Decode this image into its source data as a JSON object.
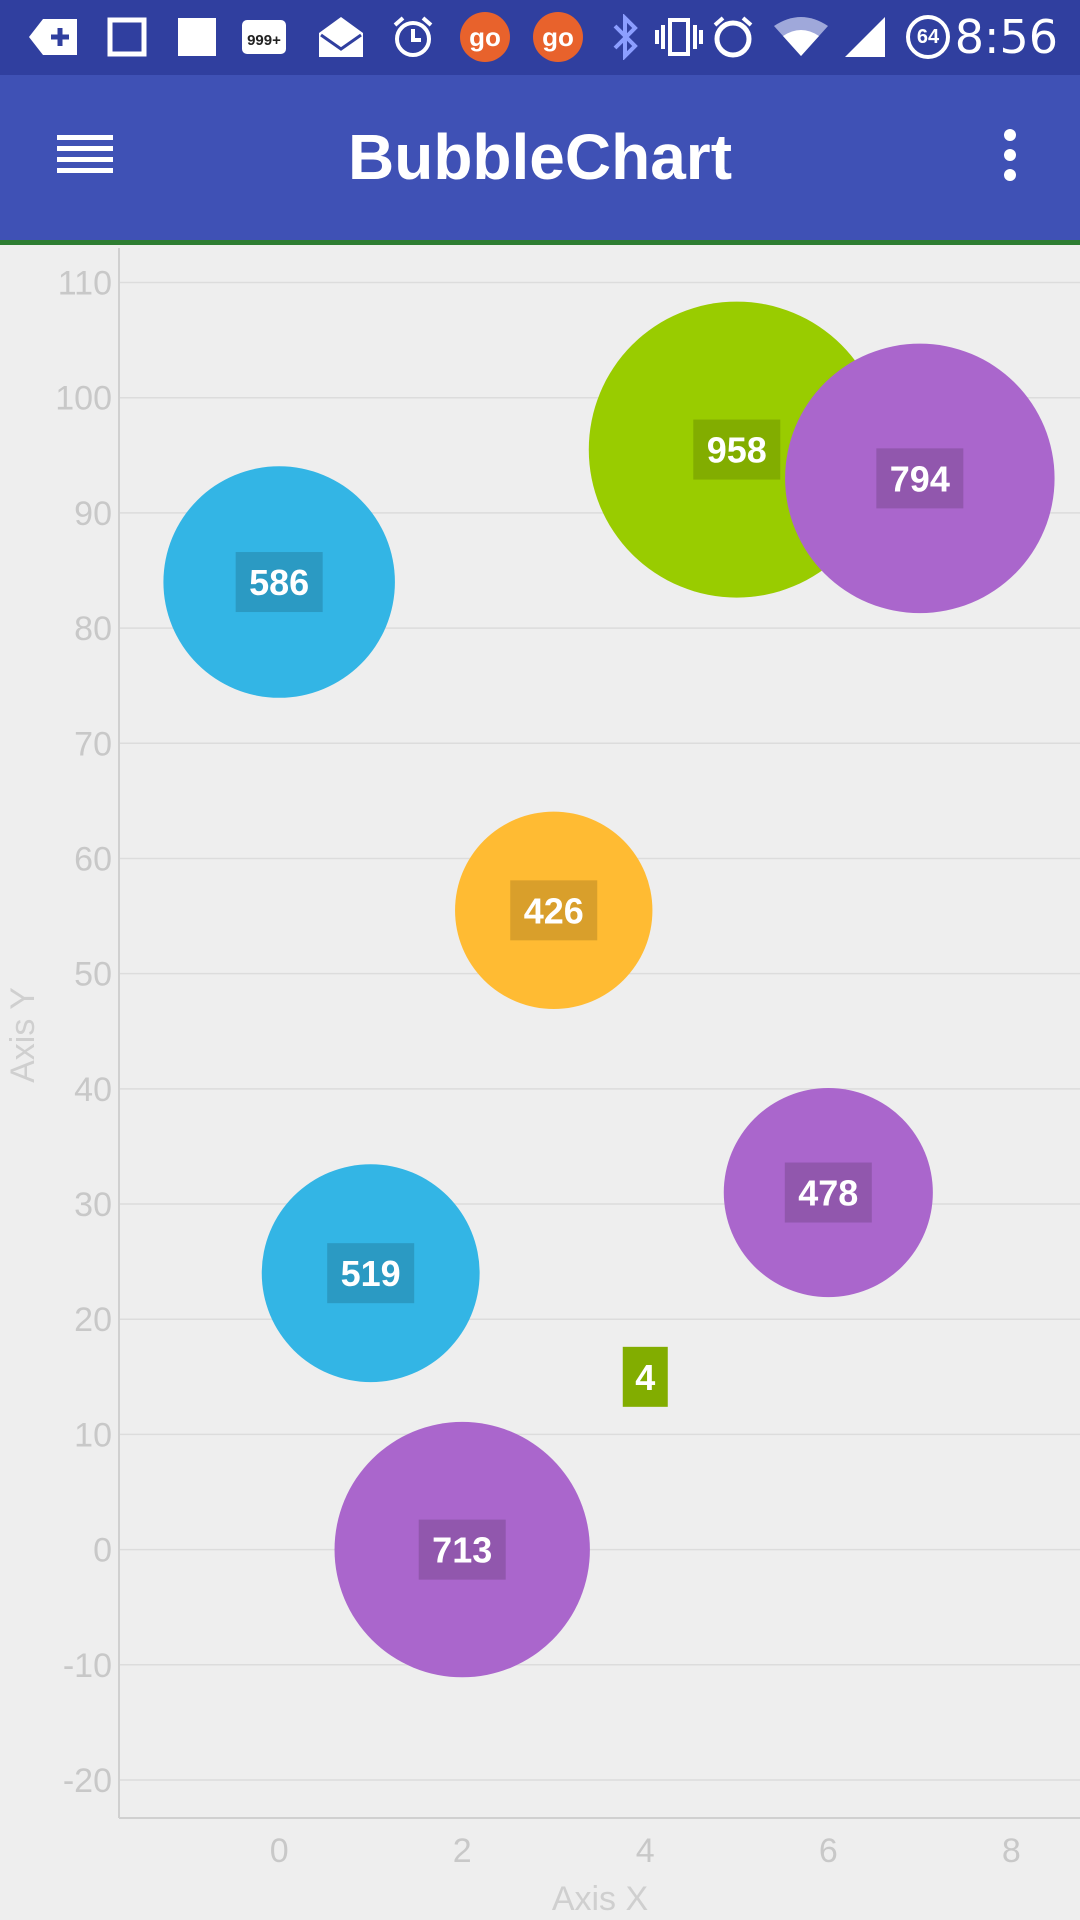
{
  "status_bar": {
    "time": "8:56",
    "notif_count": "999+",
    "go_label": "go",
    "battery_level": "64",
    "icons": [
      "add-box-icon",
      "square-outline-icon",
      "square-filled-icon",
      "counter-999-icon",
      "mail-open-icon",
      "alarm-icon",
      "go-app-icon",
      "go-app-icon",
      "bluetooth-icon",
      "vibrate-icon",
      "alarm-icon",
      "wifi-icon",
      "cell-signal-icon",
      "battery-circle-icon"
    ]
  },
  "app_bar": {
    "title": "BubbleChart",
    "menu_icon": "hamburger-menu-icon",
    "overflow_icon": "more-vert-icon"
  },
  "chart_data": {
    "type": "scatter",
    "subtype": "bubble",
    "xlabel": "Axis X",
    "ylabel": "Axis Y",
    "xlim": [
      -1.75,
      8.75
    ],
    "ylim": [
      -23.3,
      113
    ],
    "x_ticks": [
      0,
      2,
      4,
      6,
      8
    ],
    "y_ticks": [
      -20,
      -10,
      0,
      10,
      20,
      30,
      40,
      50,
      60,
      70,
      80,
      90,
      100,
      110
    ],
    "grid": "horizontal",
    "legend": "none",
    "points": [
      {
        "x": 0,
        "y": 84,
        "size": 586,
        "label": "586",
        "color": "#33b5e5"
      },
      {
        "x": 1,
        "y": 24,
        "size": 519,
        "label": "519",
        "color": "#33b5e5"
      },
      {
        "x": 2,
        "y": 0,
        "size": 713,
        "label": "713",
        "color": "#aa66cc"
      },
      {
        "x": 3,
        "y": 55.5,
        "size": 426,
        "label": "426",
        "color": "#ffbb33"
      },
      {
        "x": 4,
        "y": 15,
        "size": 4,
        "label": "4",
        "color": "#99cc00"
      },
      {
        "x": 5,
        "y": 95.5,
        "size": 958,
        "label": "958",
        "color": "#99cc00"
      },
      {
        "x": 6,
        "y": 31,
        "size": 478,
        "label": "478",
        "color": "#aa66cc"
      },
      {
        "x": 7,
        "y": 93,
        "size": 794,
        "label": "794",
        "color": "#aa66cc"
      }
    ]
  }
}
